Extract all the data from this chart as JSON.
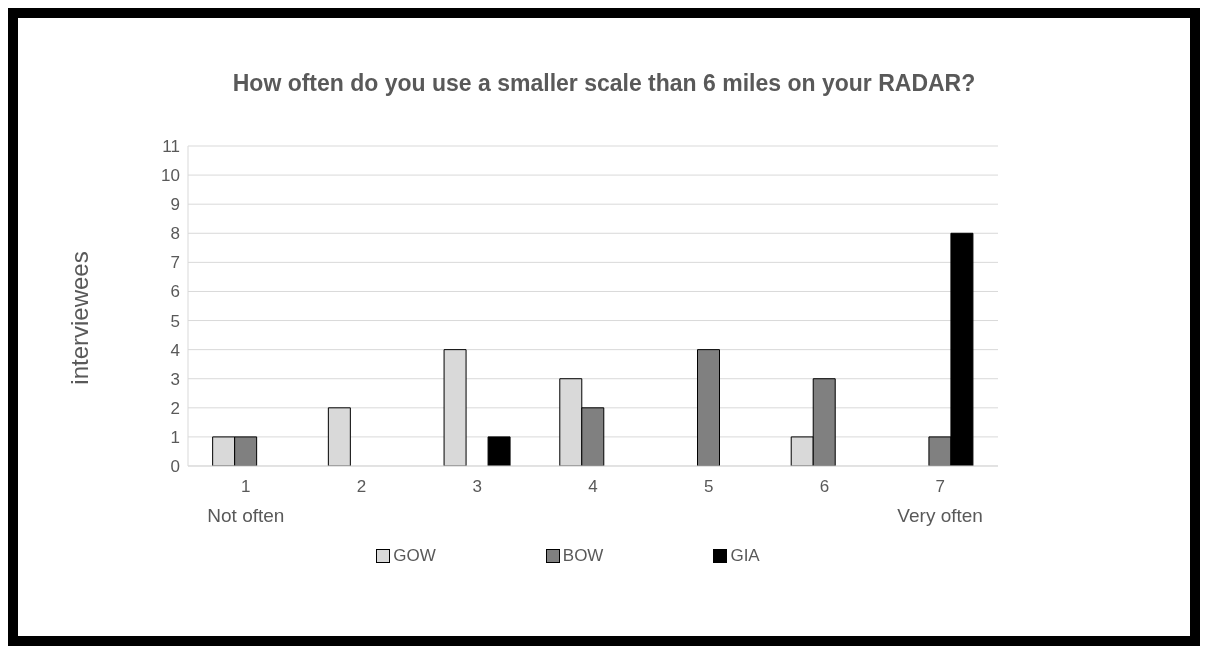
{
  "chart_data": {
    "type": "bar",
    "title": "How often do you use a smaller scale than 6 miles on your RADAR?",
    "ylabel": "interviewees",
    "categories": [
      "1",
      "2",
      "3",
      "4",
      "5",
      "6",
      "7"
    ],
    "series": [
      {
        "name": "GOW",
        "color": "#d9d9d9",
        "values": [
          1,
          2,
          4,
          3,
          0,
          1,
          0
        ]
      },
      {
        "name": "BOW",
        "color": "#808080",
        "values": [
          1,
          0,
          0,
          2,
          4,
          3,
          1
        ]
      },
      {
        "name": "GIA",
        "color": "#000000",
        "values": [
          0,
          0,
          1,
          0,
          0,
          0,
          8
        ]
      }
    ],
    "ylim": [
      0,
      11
    ],
    "yticks": [
      0,
      1,
      2,
      3,
      4,
      5,
      6,
      7,
      8,
      9,
      10,
      11
    ],
    "grid": "y",
    "legend": "bottom",
    "annotations": [
      "Not often",
      "Very often"
    ]
  }
}
